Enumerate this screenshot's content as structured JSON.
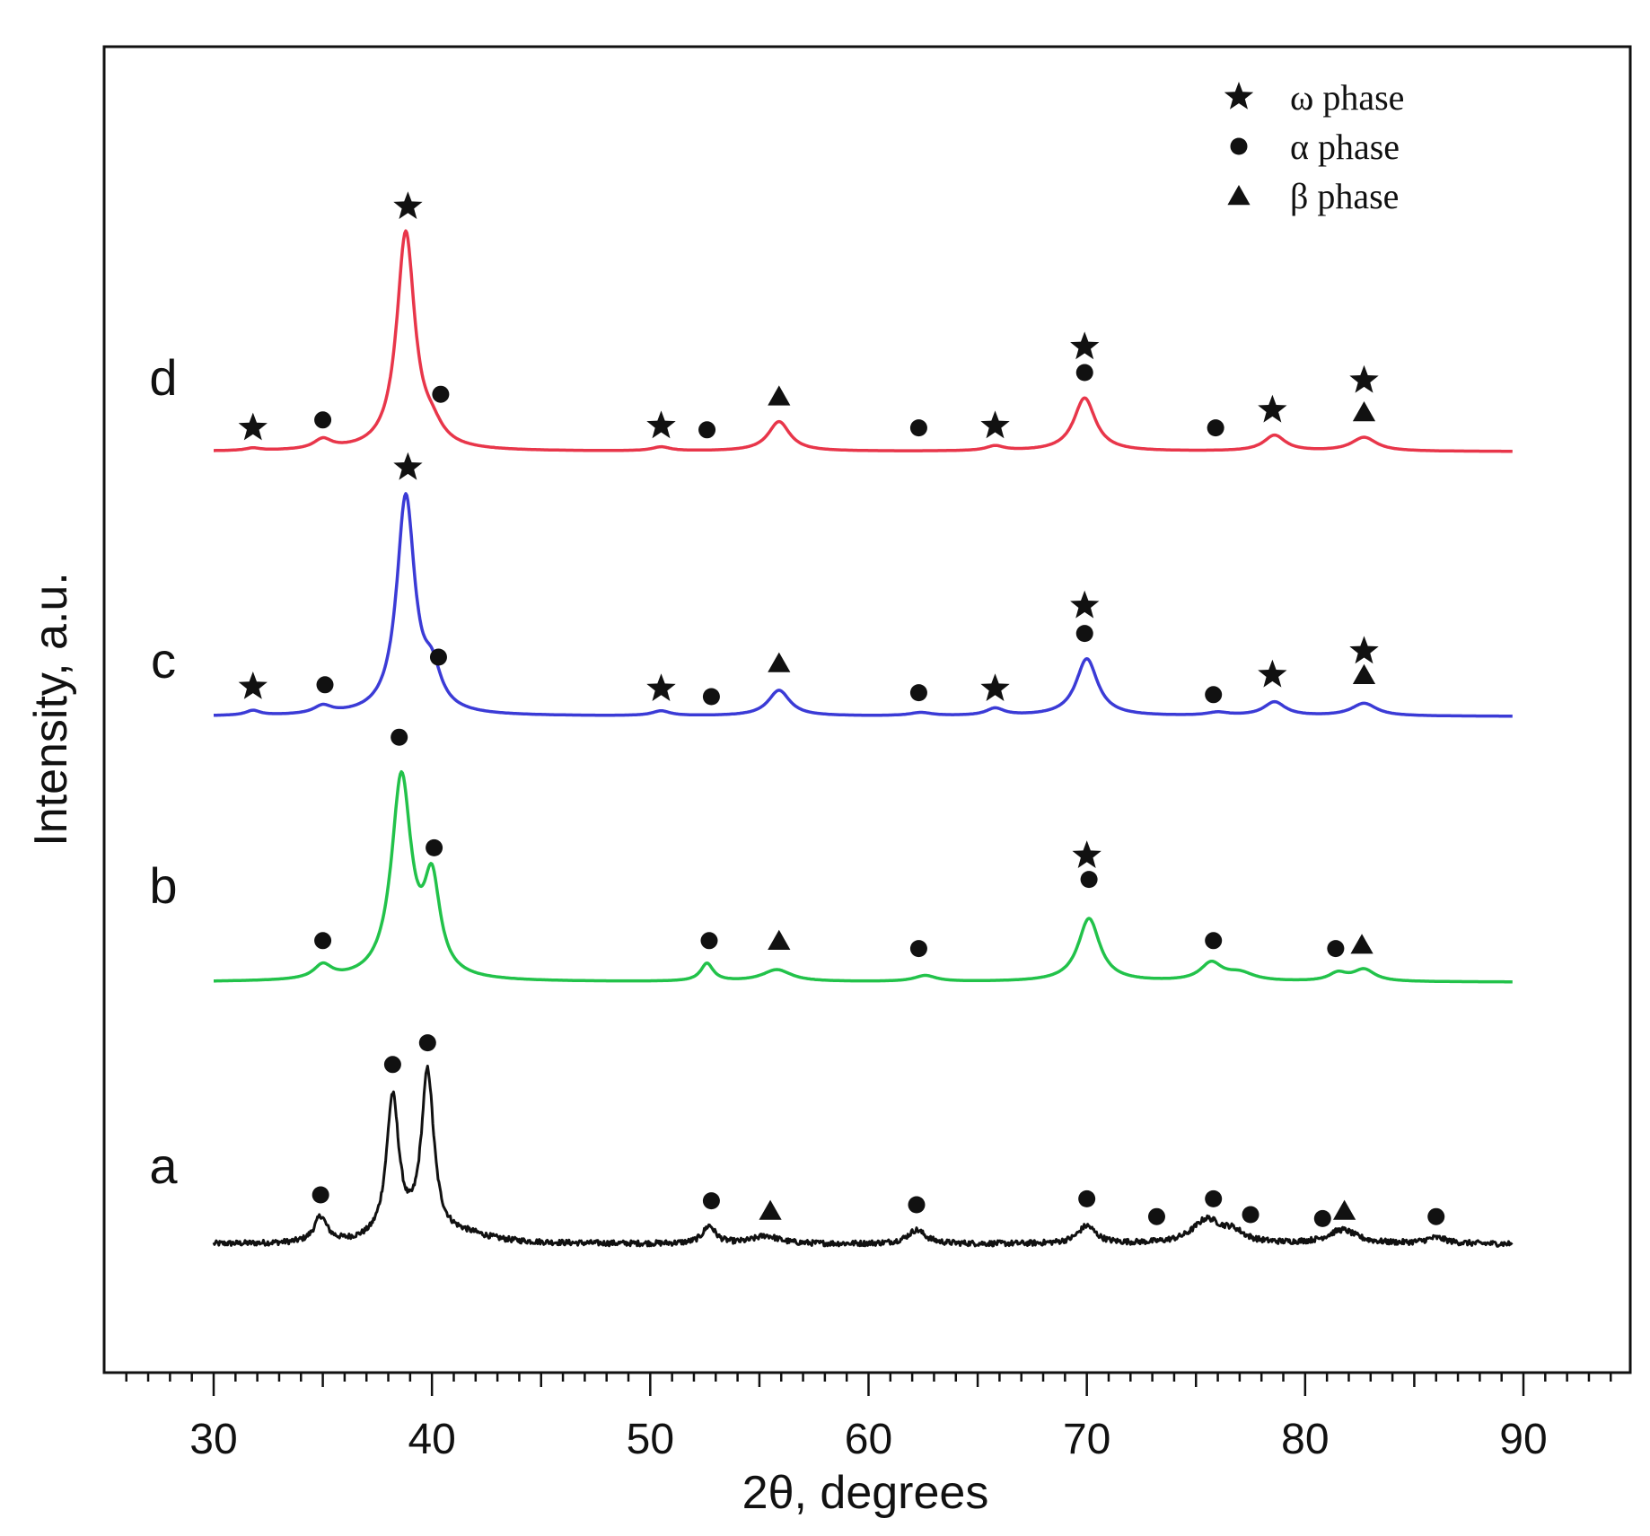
{
  "chart_data": {
    "type": "line",
    "title": "",
    "xlabel": "2θ, degrees",
    "ylabel": "Intensity, a.u.",
    "xlim": [
      25,
      95
    ],
    "xticks": [
      30,
      40,
      50,
      60,
      70,
      80,
      90
    ],
    "x_minor_step": 1,
    "yticks_shown": false,
    "legend_position": "top-right",
    "legend": [
      {
        "symbol": "star",
        "label": "ω phase"
      },
      {
        "symbol": "circle",
        "label": "α phase"
      },
      {
        "symbol": "triangle",
        "label": "β phase"
      }
    ],
    "x_range": [
      30,
      89.5
    ],
    "series": [
      {
        "name": "a",
        "color": "#111111",
        "baseline": 0,
        "noise": 0.07,
        "peaks": [
          {
            "x": 34.9,
            "h": 0.65,
            "w": 0.35
          },
          {
            "x": 38.2,
            "h": 3.6,
            "w": 0.35
          },
          {
            "x": 39.8,
            "h": 4.2,
            "w": 0.35
          },
          {
            "x": 41.5,
            "h": 0.2,
            "w": 1.5
          },
          {
            "x": 52.7,
            "h": 0.45,
            "w": 0.35
          },
          {
            "x": 55.3,
            "h": 0.2,
            "w": 0.7
          },
          {
            "x": 62.2,
            "h": 0.35,
            "w": 0.5
          },
          {
            "x": 70.0,
            "h": 0.45,
            "w": 0.5
          },
          {
            "x": 75.5,
            "h": 0.6,
            "w": 0.8
          },
          {
            "x": 76.7,
            "h": 0.25,
            "w": 0.6
          },
          {
            "x": 81.7,
            "h": 0.35,
            "w": 0.8
          },
          {
            "x": 86.0,
            "h": 0.15,
            "w": 0.6
          }
        ],
        "markers": [
          {
            "x": 34.9,
            "sym": "circle",
            "lev": 1.25
          },
          {
            "x": 38.2,
            "sym": "circle",
            "lev": 4.55
          },
          {
            "x": 39.8,
            "sym": "circle",
            "lev": 5.1
          },
          {
            "x": 52.8,
            "sym": "circle",
            "lev": 1.1
          },
          {
            "x": 55.5,
            "sym": "triangle",
            "lev": 0.85
          },
          {
            "x": 62.2,
            "sym": "circle",
            "lev": 1.0
          },
          {
            "x": 70.0,
            "sym": "circle",
            "lev": 1.15
          },
          {
            "x": 73.2,
            "sym": "circle",
            "lev": 0.7
          },
          {
            "x": 75.8,
            "sym": "circle",
            "lev": 1.15
          },
          {
            "x": 77.5,
            "sym": "circle",
            "lev": 0.75
          },
          {
            "x": 80.8,
            "sym": "circle",
            "lev": 0.65
          },
          {
            "x": 81.8,
            "sym": "triangle",
            "lev": 0.85
          },
          {
            "x": 86.0,
            "sym": "circle",
            "lev": 0.7
          }
        ]
      },
      {
        "name": "b",
        "color": "#22c24a",
        "baseline": 0,
        "noise": 0,
        "peaks": [
          {
            "x": 35.0,
            "h": 0.35,
            "w": 0.5
          },
          {
            "x": 38.6,
            "h": 5.1,
            "w": 0.55
          },
          {
            "x": 40.0,
            "h": 2.3,
            "w": 0.45
          },
          {
            "x": 52.6,
            "h": 0.45,
            "w": 0.35
          },
          {
            "x": 55.8,
            "h": 0.3,
            "w": 0.8
          },
          {
            "x": 62.6,
            "h": 0.15,
            "w": 0.6
          },
          {
            "x": 70.1,
            "h": 1.6,
            "w": 0.6
          },
          {
            "x": 75.7,
            "h": 0.45,
            "w": 0.6
          },
          {
            "x": 77.0,
            "h": 0.2,
            "w": 0.8
          },
          {
            "x": 81.5,
            "h": 0.2,
            "w": 0.5
          },
          {
            "x": 82.7,
            "h": 0.3,
            "w": 0.6
          }
        ],
        "markers": [
          {
            "x": 35.0,
            "sym": "circle",
            "lev": 1.05
          },
          {
            "x": 38.5,
            "sym": "circle",
            "lev": 6.2
          },
          {
            "x": 40.1,
            "sym": "circle",
            "lev": 3.4
          },
          {
            "x": 52.7,
            "sym": "circle",
            "lev": 1.05
          },
          {
            "x": 55.9,
            "sym": "triangle",
            "lev": 1.05
          },
          {
            "x": 62.3,
            "sym": "circle",
            "lev": 0.85
          },
          {
            "x": 70.0,
            "sym": "star",
            "lev": 3.2
          },
          {
            "x": 70.1,
            "sym": "circle",
            "lev": 2.6
          },
          {
            "x": 75.8,
            "sym": "circle",
            "lev": 1.05
          },
          {
            "x": 81.4,
            "sym": "circle",
            "lev": 0.85
          },
          {
            "x": 82.6,
            "sym": "triangle",
            "lev": 0.95
          }
        ]
      },
      {
        "name": "c",
        "color": "#3b3bd6",
        "baseline": 0,
        "noise": 0,
        "peaks": [
          {
            "x": 31.8,
            "h": 0.12,
            "w": 0.4
          },
          {
            "x": 35.0,
            "h": 0.2,
            "w": 0.5
          },
          {
            "x": 38.8,
            "h": 5.5,
            "w": 0.5
          },
          {
            "x": 40.0,
            "h": 0.9,
            "w": 0.5
          },
          {
            "x": 50.5,
            "h": 0.12,
            "w": 0.5
          },
          {
            "x": 55.9,
            "h": 0.65,
            "w": 0.6
          },
          {
            "x": 62.4,
            "h": 0.08,
            "w": 0.6
          },
          {
            "x": 65.8,
            "h": 0.18,
            "w": 0.5
          },
          {
            "x": 70.0,
            "h": 1.45,
            "w": 0.6
          },
          {
            "x": 76.0,
            "h": 0.08,
            "w": 0.6
          },
          {
            "x": 78.6,
            "h": 0.35,
            "w": 0.6
          },
          {
            "x": 82.7,
            "h": 0.32,
            "w": 0.7
          }
        ],
        "markers": [
          {
            "x": 31.8,
            "sym": "star",
            "lev": 0.75
          },
          {
            "x": 35.1,
            "sym": "circle",
            "lev": 0.8
          },
          {
            "x": 38.9,
            "sym": "star",
            "lev": 6.3
          },
          {
            "x": 40.3,
            "sym": "circle",
            "lev": 1.5
          },
          {
            "x": 50.5,
            "sym": "star",
            "lev": 0.7
          },
          {
            "x": 52.8,
            "sym": "circle",
            "lev": 0.5
          },
          {
            "x": 55.9,
            "sym": "triangle",
            "lev": 1.35
          },
          {
            "x": 62.3,
            "sym": "circle",
            "lev": 0.6
          },
          {
            "x": 65.8,
            "sym": "star",
            "lev": 0.7
          },
          {
            "x": 69.9,
            "sym": "star",
            "lev": 2.8
          },
          {
            "x": 69.9,
            "sym": "circle",
            "lev": 2.1
          },
          {
            "x": 75.8,
            "sym": "circle",
            "lev": 0.55
          },
          {
            "x": 78.5,
            "sym": "star",
            "lev": 1.05
          },
          {
            "x": 82.7,
            "sym": "star",
            "lev": 1.65
          },
          {
            "x": 82.7,
            "sym": "triangle",
            "lev": 1.05
          }
        ]
      },
      {
        "name": "d",
        "color": "#e8364a",
        "baseline": 0,
        "noise": 0,
        "peaks": [
          {
            "x": 31.8,
            "h": 0.06,
            "w": 0.4
          },
          {
            "x": 35.0,
            "h": 0.25,
            "w": 0.5
          },
          {
            "x": 38.8,
            "h": 5.5,
            "w": 0.5
          },
          {
            "x": 40.0,
            "h": 0.4,
            "w": 0.6
          },
          {
            "x": 50.5,
            "h": 0.1,
            "w": 0.5
          },
          {
            "x": 55.9,
            "h": 0.75,
            "w": 0.6
          },
          {
            "x": 65.8,
            "h": 0.12,
            "w": 0.5
          },
          {
            "x": 69.9,
            "h": 1.35,
            "w": 0.6
          },
          {
            "x": 78.6,
            "h": 0.4,
            "w": 0.6
          },
          {
            "x": 82.7,
            "h": 0.35,
            "w": 0.7
          }
        ],
        "markers": [
          {
            "x": 31.8,
            "sym": "star",
            "lev": 0.6
          },
          {
            "x": 35.0,
            "sym": "circle",
            "lev": 0.8
          },
          {
            "x": 38.9,
            "sym": "star",
            "lev": 6.2
          },
          {
            "x": 40.4,
            "sym": "circle",
            "lev": 1.45
          },
          {
            "x": 50.5,
            "sym": "star",
            "lev": 0.65
          },
          {
            "x": 52.6,
            "sym": "circle",
            "lev": 0.55
          },
          {
            "x": 55.9,
            "sym": "triangle",
            "lev": 1.4
          },
          {
            "x": 62.3,
            "sym": "circle",
            "lev": 0.6
          },
          {
            "x": 65.8,
            "sym": "star",
            "lev": 0.65
          },
          {
            "x": 69.9,
            "sym": "star",
            "lev": 2.65
          },
          {
            "x": 69.9,
            "sym": "circle",
            "lev": 2.0
          },
          {
            "x": 75.9,
            "sym": "circle",
            "lev": 0.6
          },
          {
            "x": 78.5,
            "sym": "star",
            "lev": 1.05
          },
          {
            "x": 82.7,
            "sym": "star",
            "lev": 1.8
          },
          {
            "x": 82.7,
            "sym": "triangle",
            "lev": 1.0
          }
        ]
      }
    ]
  }
}
